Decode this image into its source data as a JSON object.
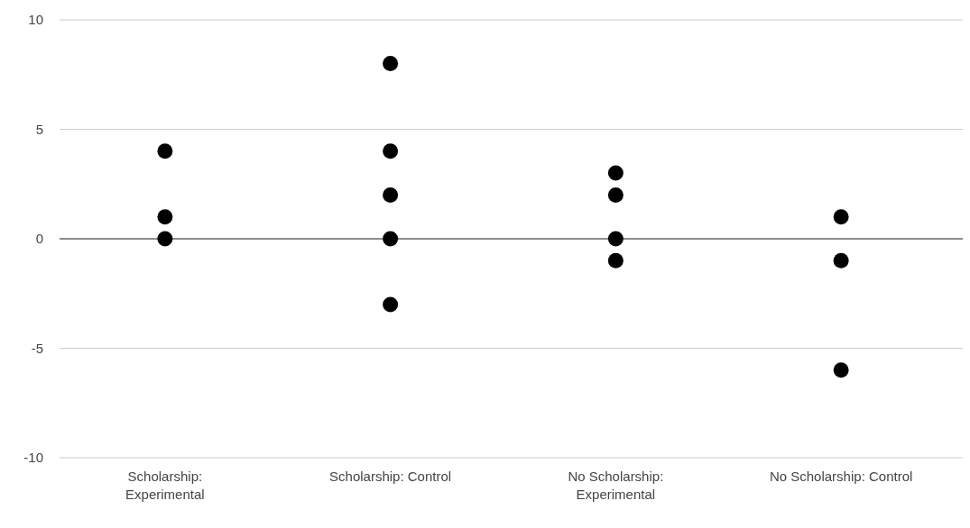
{
  "chart_data": {
    "type": "scatter",
    "categories": [
      "Scholarship: Experimental",
      "Scholarship: Control",
      "No Scholarship: Experimental",
      "No Scholarship: Control"
    ],
    "series": [
      {
        "color": "#000000",
        "x": [
          "Scholarship: Experimental",
          "Scholarship: Experimental",
          "Scholarship: Experimental",
          "Scholarship: Control",
          "Scholarship: Control",
          "Scholarship: Control",
          "Scholarship: Control",
          "Scholarship: Control",
          "No Scholarship: Experimental",
          "No Scholarship: Experimental",
          "No Scholarship: Experimental",
          "No Scholarship: Experimental",
          "No Scholarship: Control",
          "No Scholarship: Control",
          "No Scholarship: Control"
        ],
        "values": [
          4,
          1,
          0,
          8,
          4,
          2,
          0,
          -3,
          3,
          2,
          0,
          -1,
          1,
          -1,
          -6
        ]
      }
    ],
    "ylim": [
      -10,
      10
    ],
    "yticks": [
      -10,
      -5,
      0,
      5,
      10
    ],
    "grid": "y",
    "marker": "circle"
  }
}
